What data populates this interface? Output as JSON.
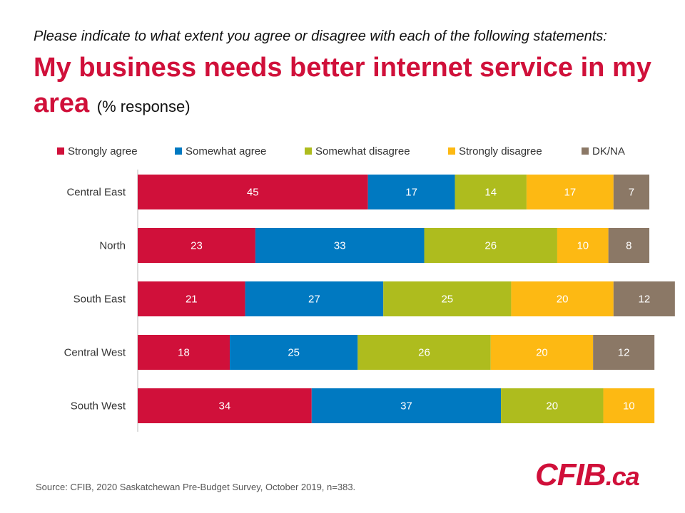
{
  "question": "Please indicate to what extent you agree or disagree with each of the following statements:",
  "title": "My business needs better internet service in my area",
  "subtitle": "(% response)",
  "source": "Source: CFIB, 2020  Saskatchewan Pre-Budget Survey, October 2019, n=383.",
  "logo": {
    "main": "CFIB",
    "suffix": ".ca",
    "color": "#d0103a"
  },
  "chart_data": {
    "type": "bar",
    "orientation": "horizontal",
    "stacked": true,
    "categories": [
      "Central East",
      "North",
      "South East",
      "Central West",
      "South West"
    ],
    "series": [
      {
        "name": "Strongly agree",
        "color": "#d0103a",
        "values": [
          45,
          23,
          21,
          18,
          34
        ]
      },
      {
        "name": "Somewhat agree",
        "color": "#0079c1",
        "values": [
          17,
          33,
          27,
          25,
          37
        ]
      },
      {
        "name": "Somewhat disagree",
        "color": "#aebc1e",
        "values": [
          14,
          26,
          25,
          26,
          20
        ]
      },
      {
        "name": "Strongly disagree",
        "color": "#fdb913",
        "values": [
          17,
          10,
          20,
          20,
          10
        ]
      },
      {
        "name": "DK/NA",
        "color": "#8b7866",
        "values": [
          7,
          8,
          12,
          12,
          0
        ]
      }
    ],
    "xlim": [
      0,
      100
    ],
    "legend": "top",
    "grid": false
  }
}
